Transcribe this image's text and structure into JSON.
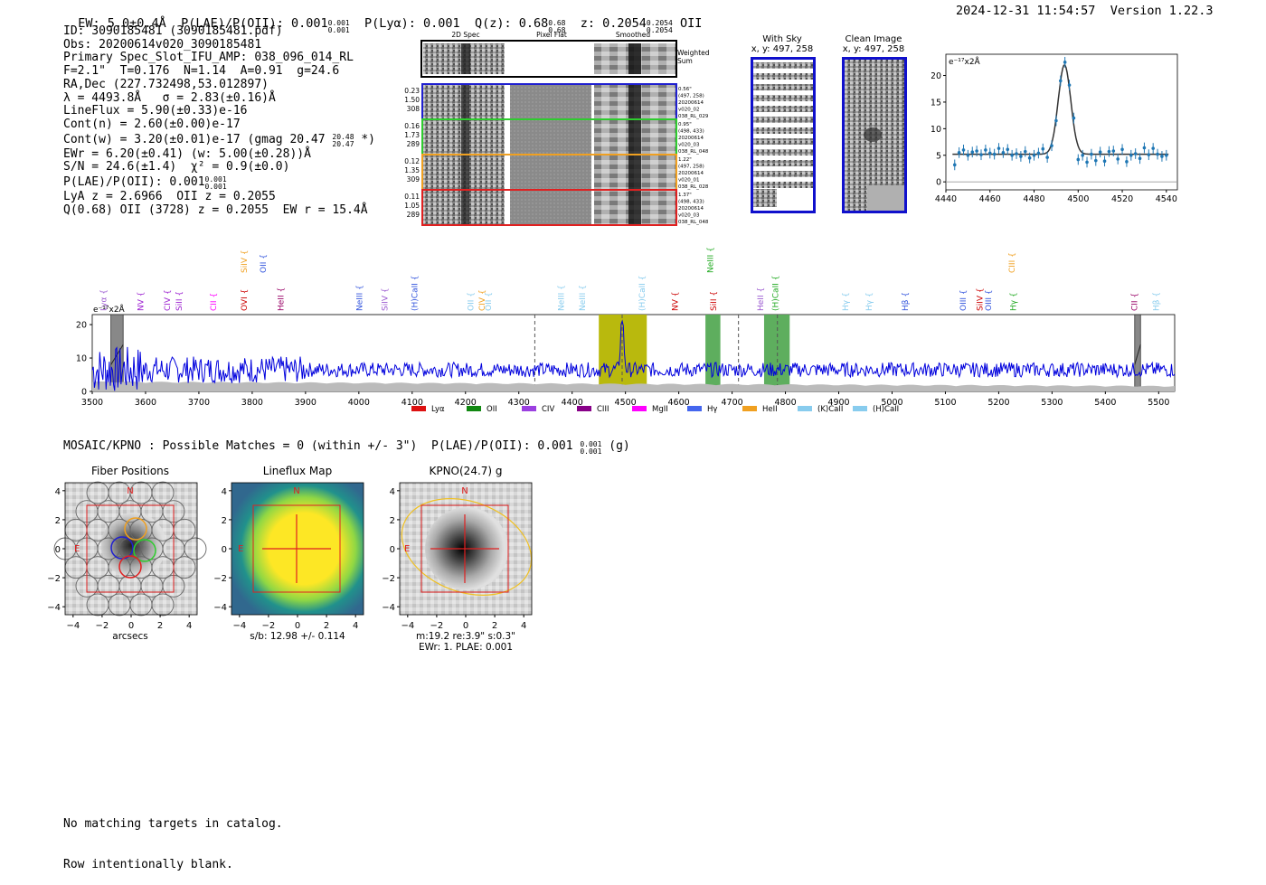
{
  "header": {
    "ew": "EW: 5.0±0.4Å",
    "plae_label": "P(LAE)/P(OII): 0.001",
    "plae_up": "0.001",
    "plae_lo": "0.001",
    "plya": "P(Lyα): 0.001",
    "qz_label": "Q(z): 0.68",
    "qz_up": "0.68",
    "qz_lo": "0.68",
    "z_label": "z: 0.2054",
    "z_up": "0.2054",
    "z_lo": "0.2054",
    "z_line": "OII",
    "timestamp": "2024-12-31 11:54:57",
    "version": "Version 1.22.3"
  },
  "info": {
    "id": "ID: 3090185481 (3090185481.pdf)",
    "obs": "Obs: 20200614v020_3090185481",
    "primary": "Primary Spec_Slot_IFU_AMP: 038_096_014_RL",
    "fwhm": "F=2.1\"  T=0.176  N=1.14  A=0.91  g=24.6",
    "radec": "RA,Dec (227.732498,53.012897)",
    "lambda": "λ = 4493.8Å   σ = 2.83(±0.16)Å",
    "lineflux": "LineFlux = 5.90(±0.33)e-16",
    "contn": "Cont(n) = 2.60(±0.00)e-17",
    "contw_a": "Cont(w) = 3.20(±0.01)e-17 (gmag 20.47",
    "contw_up": "20.48",
    "contw_lo": "20.47",
    "contw_b": "*)",
    "ewr": "EWr = 6.20(±0.41) (w: 5.00(±0.28))Å",
    "sn": "S/N = 24.6(±1.4)  χ² = 0.9(±0.0)",
    "plae_a": "P(LAE)/P(OII): 0.001",
    "plae_up": "0.001",
    "plae_lo": "0.001",
    "lya": "LyA z = 2.6966  OII z = 0.2055",
    "q": "Q(0.68) OII (3728) z = 0.2055  EW r = 15.4Å"
  },
  "cutouts": {
    "col_titles": [
      "2D Spec",
      "Pixel Flat",
      "Smoothed"
    ],
    "weighted": [
      "Weighted",
      "Sum"
    ],
    "rows": [
      {
        "color": "#1f1fd0",
        "left": [
          "0.23",
          "1.50",
          "308"
        ],
        "right": [
          "0.56\"",
          "(497, 258)",
          "20200614",
          "v020_02",
          "038_RL_029"
        ]
      },
      {
        "color": "#2ecc2e",
        "left": [
          "0.16",
          "1.73",
          "289"
        ],
        "right": [
          "0.95\"",
          "(498, 433)",
          "20200614",
          "v020_03",
          "038_RL_048"
        ]
      },
      {
        "color": "#f0a020",
        "left": [
          "0.12",
          "1.35",
          "309"
        ],
        "right": [
          "1.22\"",
          "(497, 258)",
          "20200614",
          "v020_01",
          "038_RL_028"
        ]
      },
      {
        "color": "#e02020",
        "left": [
          "0.11",
          "1.05",
          "289"
        ],
        "right": [
          "1.37\"",
          "(498, 433)",
          "20200614",
          "v020_03",
          "038_RL_048"
        ]
      }
    ]
  },
  "sky": {
    "with_sky": [
      "With Sky",
      "x, y: 497, 258"
    ],
    "clean": [
      "Clean Image",
      "x, y: 497, 258"
    ]
  },
  "zoom_chart": {
    "type": "scatter",
    "unit_label": "e⁻¹⁷x2Å",
    "xlim": [
      4440,
      4545
    ],
    "ylim": [
      -1.5,
      24
    ],
    "xticks": [
      4440,
      4460,
      4480,
      4500,
      4520,
      4540
    ],
    "yticks": [
      0,
      5,
      10,
      15,
      20
    ],
    "fit_center": 4493.8,
    "fit_sigma": 2.83,
    "fit_base": 5.2,
    "fit_amp": 16.8,
    "x": [
      4444,
      4446,
      4448,
      4450,
      4452,
      4454,
      4456,
      4458,
      4460,
      4462,
      4464,
      4466,
      4468,
      4470,
      4472,
      4474,
      4476,
      4478,
      4480,
      4482,
      4484,
      4486,
      4488,
      4490,
      4492,
      4494,
      4496,
      4498,
      4500,
      4502,
      4504,
      4506,
      4508,
      4510,
      4512,
      4514,
      4516,
      4518,
      4520,
      4522,
      4524,
      4526,
      4528,
      4530,
      4532,
      4534,
      4536,
      4538,
      4540
    ],
    "y": [
      3.2,
      5.5,
      6.0,
      5.0,
      5.6,
      5.8,
      5.1,
      6.0,
      5.4,
      5.2,
      6.3,
      5.5,
      6.1,
      5.0,
      5.3,
      4.8,
      5.7,
      4.5,
      5.0,
      5.4,
      6.2,
      4.6,
      6.8,
      11.5,
      19.0,
      22.5,
      18.2,
      12.0,
      4.2,
      5.0,
      3.7,
      5.2,
      4.0,
      5.6,
      3.9,
      5.7,
      5.8,
      4.3,
      6.1,
      3.8,
      5.0,
      5.3,
      4.4,
      6.4,
      5.1,
      6.3,
      5.2,
      4.8,
      5.0
    ]
  },
  "full_chart": {
    "type": "line",
    "unit_label": "e⁻¹⁷x2Å",
    "xlim": [
      3500,
      5530
    ],
    "ylim": [
      0,
      23
    ],
    "xticks": [
      3500,
      3600,
      3700,
      3800,
      3900,
      4000,
      4100,
      4200,
      4300,
      4400,
      4500,
      4600,
      4700,
      4800,
      4900,
      5000,
      5100,
      5200,
      5300,
      5400,
      5500
    ],
    "yticks": [
      0,
      10,
      20
    ],
    "mean_level": 6.5,
    "emission_peak": 4493.8,
    "peak_height": 22,
    "highlights": [
      {
        "from": 4450,
        "to": 4540,
        "color": "#b5b500"
      },
      {
        "from": 4650,
        "to": 4678,
        "color": "#55aa55"
      },
      {
        "from": 4760,
        "to": 4808,
        "color": "#55aa55"
      }
    ],
    "masked": [
      {
        "from": 3535,
        "to": 3558
      },
      {
        "from": 5455,
        "to": 5466
      }
    ],
    "dashed": [
      4330,
      4493.8,
      4712,
      4785
    ],
    "line_labels": [
      {
        "x": 3526,
        "text": "Lyα",
        "color": "#9b59d0",
        "tier": 0
      },
      {
        "x": 3596,
        "text": "NV",
        "color": "#9b1fd0",
        "tier": 1
      },
      {
        "x": 3646,
        "text": "CIV",
        "color": "#9b1fd0",
        "tier": 1
      },
      {
        "x": 3668,
        "text": "SiII",
        "color": "#9b1fd0",
        "tier": 1
      },
      {
        "x": 3732,
        "text": "CII",
        "color": "#ff00ff",
        "tier": 1
      },
      {
        "x": 3790,
        "text": "SiIV",
        "color": "#f0a020",
        "tier": 2
      },
      {
        "x": 3826,
        "text": "OII",
        "color": "#3355dd",
        "tier": 2
      },
      {
        "x": 3790,
        "text": "OVI",
        "color": "#cc0000",
        "tier": 1
      },
      {
        "x": 3859,
        "text": "HeII",
        "color": "#990066",
        "tier": 1
      },
      {
        "x": 4006,
        "text": "NeIII",
        "color": "#3355dd",
        "tier": 1
      },
      {
        "x": 4054,
        "text": "SiIV",
        "color": "#9b59d0",
        "tier": 1
      },
      {
        "x": 4110,
        "text": "(H)CaII",
        "color": "#3355dd",
        "tier": 1
      },
      {
        "x": 4215,
        "text": "OII",
        "color": "#88ccee",
        "tier": 1
      },
      {
        "x": 4236,
        "text": "CIV",
        "color": "#f0a020",
        "tier": 1
      },
      {
        "x": 4248,
        "text": "OII",
        "color": "#88ccee",
        "tier": 1
      },
      {
        "x": 4384,
        "text": "NeIII",
        "color": "#88ccee",
        "tier": 1
      },
      {
        "x": 4424,
        "text": "NeIII",
        "color": "#88ccee",
        "tier": 1
      },
      {
        "x": 4536,
        "text": "(H)CaII",
        "color": "#88ccee",
        "tier": 1
      },
      {
        "x": 4598,
        "text": "NV",
        "color": "#cc0000",
        "tier": 1
      },
      {
        "x": 4664,
        "text": "NeIII",
        "color": "#22aa22",
        "tier": 2
      },
      {
        "x": 4670,
        "text": "SiII",
        "color": "#cc0000",
        "tier": 1
      },
      {
        "x": 4758,
        "text": "HeII",
        "color": "#9b59d0",
        "tier": 1
      },
      {
        "x": 4786,
        "text": "(H)CaII",
        "color": "#22aa22",
        "tier": 1
      },
      {
        "x": 4918,
        "text": "Hγ",
        "color": "#88ccee",
        "tier": 1
      },
      {
        "x": 4962,
        "text": "Hγ",
        "color": "#88ccee",
        "tier": 1
      },
      {
        "x": 5030,
        "text": "Hβ",
        "color": "#3355dd",
        "tier": 1
      },
      {
        "x": 5138,
        "text": "OIII",
        "color": "#3355dd",
        "tier": 1
      },
      {
        "x": 5170,
        "text": "SiIV",
        "color": "#cc0000",
        "tier": 1
      },
      {
        "x": 5186,
        "text": "OIII",
        "color": "#3355dd",
        "tier": 1
      },
      {
        "x": 5230,
        "text": "CIII",
        "color": "#f0a020",
        "tier": 2
      },
      {
        "x": 5232,
        "text": "Hγ",
        "color": "#22aa22",
        "tier": 1
      },
      {
        "x": 5460,
        "text": "CII",
        "color": "#990066",
        "tier": 1
      },
      {
        "x": 5500,
        "text": "Hβ",
        "color": "#88ccee",
        "tier": 1
      }
    ],
    "legend": [
      {
        "label": "Lyα",
        "color": "#dd1111"
      },
      {
        "label": "OII",
        "color": "#118811"
      },
      {
        "label": "CIV",
        "color": "#9b40e0"
      },
      {
        "label": "CIII",
        "color": "#880088"
      },
      {
        "label": "MgII",
        "color": "#ff00ff"
      },
      {
        "label": "Hγ",
        "color": "#4466ee"
      },
      {
        "label": "HeII",
        "color": "#f0a020"
      },
      {
        "label": "(K)CaII",
        "color": "#88ccee"
      },
      {
        "label": "(H)CaII",
        "color": "#88ccee"
      }
    ]
  },
  "mosaic": {
    "line_a": "MOSAIC/KPNO : Possible Matches = 0 (within +/- 3\")  P(LAE)/P(OII): 0.001",
    "up": "0.001",
    "lo": "0.001",
    "line_b": "(g)"
  },
  "panels": [
    {
      "title": "Fiber Positions",
      "xlabel": "arcsecs"
    },
    {
      "title": "Lineflux Map",
      "xlabel": "s/b: 12.98 +/- 0.114"
    },
    {
      "title": "KPNO(24.7) g",
      "xlabel": "m:19.2  re:3.9\"  s:0.3\"",
      "xlabel2": "EWr: 1. PLAE: 0.001"
    }
  ],
  "panel_ticks": [
    "4",
    "2",
    "0",
    "−2",
    "−4"
  ],
  "panel_xticks": [
    "−4",
    "−2",
    "0",
    "2",
    "4"
  ],
  "compass": {
    "n": "N",
    "e": "E"
  },
  "footer": {
    "line1": "No matching targets in catalog.",
    "line2": "Row intentionally blank."
  },
  "colors": {
    "spectrum": "#0000dd",
    "errorband": "#bbbbbb",
    "fit": "#333333",
    "points": "#1f77b4",
    "red": "#e02020"
  }
}
